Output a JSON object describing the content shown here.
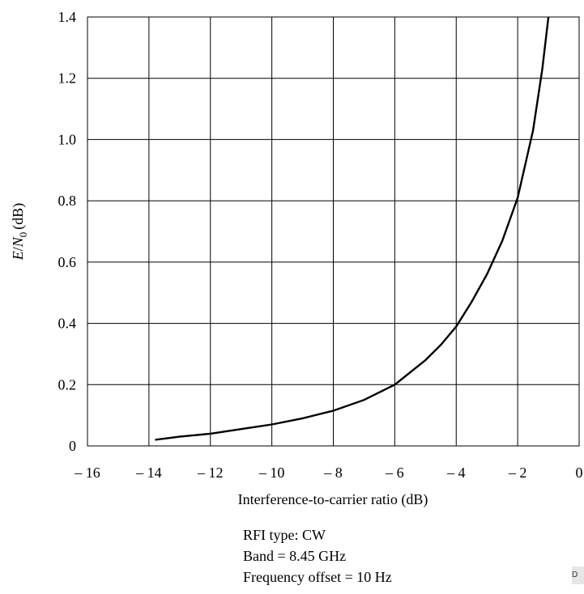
{
  "chart_data": {
    "type": "line",
    "title": "",
    "xlabel": "Interference-to-carrier ratio (dB)",
    "ylabel": {
      "prefix": "E",
      "sep": "/",
      "main": "N",
      "sub": "0",
      "unit": "(dB)"
    },
    "xlim": [
      -16,
      0
    ],
    "ylim": [
      0,
      1.4
    ],
    "xticks": [
      -16,
      -14,
      -12,
      -10,
      -8,
      -6,
      -4,
      -2,
      0
    ],
    "xtick_labels": [
      "– 16",
      "– 14",
      "– 12",
      "– 10",
      "– 8",
      "– 6",
      "– 4",
      "– 2",
      "0"
    ],
    "yticks": [
      0,
      0.2,
      0.4,
      0.6,
      0.8,
      1.0,
      1.2,
      1.4
    ],
    "ytick_labels": [
      "0",
      "0.2",
      "0.4",
      "0.6",
      "0.8",
      "1.0",
      "1.2",
      "1.4"
    ],
    "grid": true,
    "series": [
      {
        "x": [
          -13.8,
          -13,
          -12,
          -11,
          -10,
          -9,
          -8,
          -7,
          -6,
          -5,
          -4.5,
          -4,
          -3.5,
          -3,
          -2.5,
          -2,
          -1.5,
          -1.2,
          -1
        ],
        "y": [
          0.02,
          0.03,
          0.04,
          0.055,
          0.07,
          0.09,
          0.115,
          0.15,
          0.2,
          0.28,
          0.33,
          0.39,
          0.47,
          0.56,
          0.67,
          0.81,
          1.03,
          1.23,
          1.4
        ]
      }
    ],
    "annotations": [
      "RFI type: CW",
      "Band = 8.45 GHz",
      "Frequency offset = 10 Hz"
    ]
  },
  "corner_tag": "D"
}
